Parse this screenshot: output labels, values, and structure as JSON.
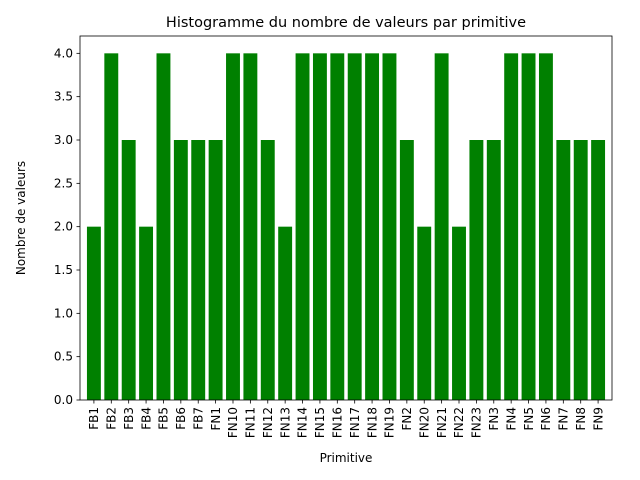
{
  "chart_data": {
    "type": "bar",
    "title": "Histogramme du nombre de valeurs par primitive",
    "xlabel": "Primitive",
    "ylabel": "Nombre de valeurs",
    "categories": [
      "FB1",
      "FB2",
      "FB3",
      "FB4",
      "FB5",
      "FB6",
      "FB7",
      "FN1",
      "FN10",
      "FN11",
      "FN12",
      "FN13",
      "FN14",
      "FN15",
      "FN16",
      "FN17",
      "FN18",
      "FN19",
      "FN2",
      "FN20",
      "FN21",
      "FN22",
      "FN23",
      "FN3",
      "FN4",
      "FN5",
      "FN6",
      "FN7",
      "FN8",
      "FN9"
    ],
    "values": [
      2,
      4,
      3,
      2,
      4,
      3,
      3,
      3,
      4,
      4,
      3,
      2,
      4,
      4,
      4,
      4,
      4,
      4,
      3,
      2,
      4,
      2,
      3,
      3,
      4,
      4,
      4,
      3,
      3,
      3
    ],
    "ylim": [
      0,
      4.2
    ],
    "yticks": [
      "0.0",
      "0.5",
      "1.0",
      "1.5",
      "2.0",
      "2.5",
      "3.0",
      "3.5",
      "4.0"
    ],
    "ytick_values": [
      0,
      0.5,
      1,
      1.5,
      2,
      2.5,
      3,
      3.5,
      4
    ],
    "bar_color": "#008000",
    "grid": false,
    "x_tick_rotation": "vertical"
  }
}
